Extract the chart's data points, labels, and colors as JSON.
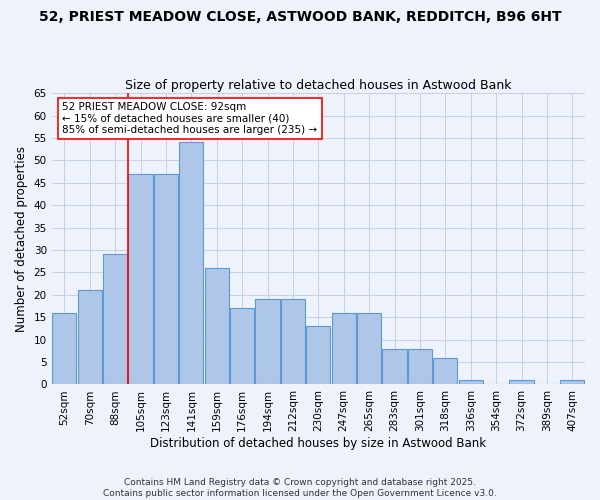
{
  "title1": "52, PRIEST MEADOW CLOSE, ASTWOOD BANK, REDDITCH, B96 6HT",
  "title2": "Size of property relative to detached houses in Astwood Bank",
  "xlabel": "Distribution of detached houses by size in Astwood Bank",
  "ylabel": "Number of detached properties",
  "categories": [
    "52sqm",
    "70sqm",
    "88sqm",
    "105sqm",
    "123sqm",
    "141sqm",
    "159sqm",
    "176sqm",
    "194sqm",
    "212sqm",
    "230sqm",
    "247sqm",
    "265sqm",
    "283sqm",
    "301sqm",
    "318sqm",
    "336sqm",
    "354sqm",
    "372sqm",
    "389sqm",
    "407sqm"
  ],
  "values": [
    16,
    21,
    29,
    47,
    47,
    54,
    26,
    17,
    19,
    19,
    13,
    16,
    16,
    8,
    8,
    6,
    1,
    0,
    1,
    0,
    1
  ],
  "bar_color": "#aec6e8",
  "bar_edge_color": "#5b9bd5",
  "annotation_line1": "52 PRIEST MEADOW CLOSE: 92sqm",
  "annotation_line2": "← 15% of detached houses are smaller (40)",
  "annotation_line3": "85% of semi-detached houses are larger (235) →",
  "vline_pos": 2.5,
  "ylim": [
    0,
    65
  ],
  "yticks": [
    0,
    5,
    10,
    15,
    20,
    25,
    30,
    35,
    40,
    45,
    50,
    55,
    60,
    65
  ],
  "footer_line1": "Contains HM Land Registry data © Crown copyright and database right 2025.",
  "footer_line2": "Contains public sector information licensed under the Open Government Licence v3.0.",
  "background_color": "#eef2fb",
  "grid_color": "#c5cfe8",
  "title_fontsize": 10,
  "subtitle_fontsize": 9,
  "tick_fontsize": 7.5,
  "ylabel_fontsize": 8.5,
  "xlabel_fontsize": 8.5,
  "annotation_fontsize": 7.5,
  "footer_fontsize": 6.5
}
